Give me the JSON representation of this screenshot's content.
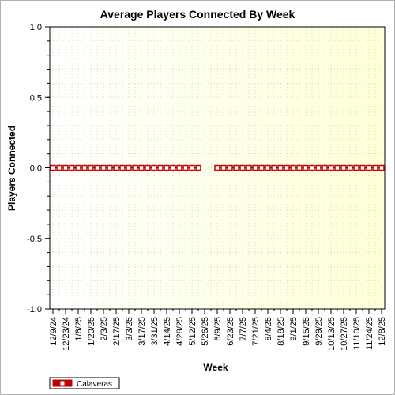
{
  "chart_data": {
    "type": "line",
    "title": "Average Players Connected By Week",
    "xlabel": "Week",
    "ylabel": "Players Connected",
    "ylim": [
      -1.0,
      1.0
    ],
    "y_ticks": [
      "1.0",
      "0.5",
      "0.0",
      "-0.5",
      "-1.0"
    ],
    "y_tick_values": [
      1.0,
      0.5,
      0.0,
      -0.5,
      -1.0
    ],
    "x_tick_labels": [
      "12/9/24",
      "12/23/24",
      "1/6/25",
      "1/20/25",
      "2/3/25",
      "2/17/25",
      "3/3/25",
      "3/17/25",
      "3/31/25",
      "4/14/25",
      "4/28/25",
      "5/12/25",
      "5/26/25",
      "6/9/25",
      "6/23/25",
      "7/7/25",
      "7/21/25",
      "8/4/25",
      "8/18/25",
      "9/1/25",
      "9/15/25",
      "9/29/25",
      "10/13/25",
      "10/27/25",
      "11/10/25",
      "11/24/25",
      "12/8/25"
    ],
    "grid": true,
    "legend_placement": "bottom-left",
    "background_gradient": [
      "#ffffff",
      "#ffffd8"
    ],
    "series": [
      {
        "name": "Calaveras",
        "color": "#c00000",
        "x": [
          "12/9/24",
          "12/16/24",
          "12/23/24",
          "12/30/24",
          "1/6/25",
          "1/13/25",
          "1/20/25",
          "1/27/25",
          "2/3/25",
          "2/10/25",
          "2/17/25",
          "2/24/25",
          "3/3/25",
          "3/10/25",
          "3/17/25",
          "3/24/25",
          "3/31/25",
          "4/7/25",
          "4/14/25",
          "4/21/25",
          "4/28/25",
          "5/5/25",
          "5/12/25",
          "5/19/25",
          "5/26/25",
          "6/2/25",
          "6/9/25",
          "6/16/25",
          "6/23/25",
          "6/30/25",
          "7/7/25",
          "7/14/25",
          "7/21/25",
          "7/28/25",
          "8/4/25",
          "8/11/25",
          "8/18/25",
          "8/25/25",
          "9/1/25",
          "9/8/25",
          "9/15/25",
          "9/22/25",
          "9/29/25",
          "10/6/25",
          "10/13/25",
          "10/20/25",
          "10/27/25",
          "11/3/25",
          "11/10/25",
          "11/17/25",
          "11/24/25",
          "12/1/25",
          "12/8/25"
        ],
        "values": [
          0,
          0,
          0,
          0,
          0,
          0,
          0,
          0,
          0,
          0,
          0,
          0,
          0,
          0,
          0,
          0,
          0,
          0,
          0,
          0,
          0,
          0,
          0,
          0,
          null,
          null,
          0,
          0,
          0,
          0,
          0,
          0,
          0,
          0,
          0,
          0,
          0,
          0,
          0,
          0,
          0,
          0,
          0,
          0,
          0,
          0,
          0,
          0,
          0,
          0,
          0,
          0,
          0
        ]
      }
    ]
  }
}
